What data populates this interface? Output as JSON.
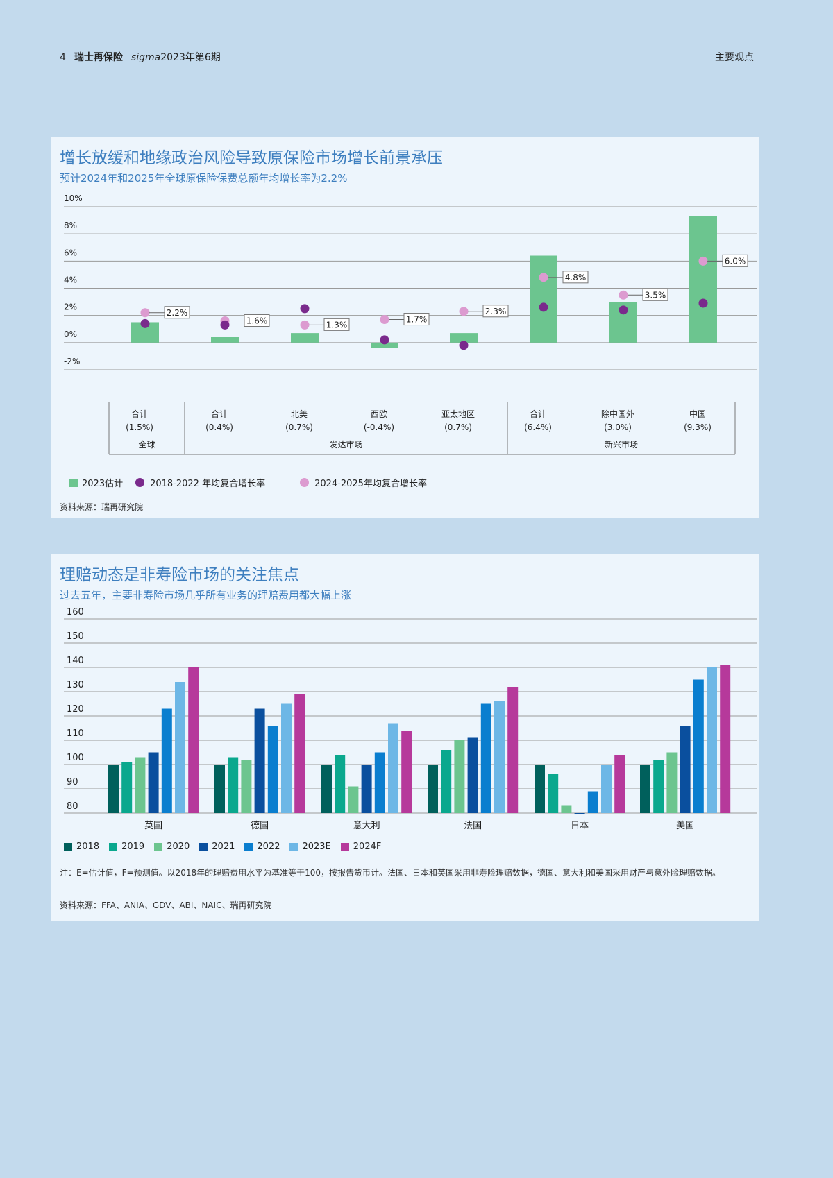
{
  "header": {
    "page_number": "4",
    "brand": "瑞士再保险",
    "publication_italic": "sigma",
    "issue": "2023年第6期",
    "section": "主要观点"
  },
  "chart1": {
    "title": "增长放缓和地缘政治风险导致原保险市场增长前景承压",
    "subtitle": "预计2024年和2025年全球原保险保费总额年均增长率为2.2%",
    "source": "资料来源：瑞再研究院",
    "legend": {
      "bar": "2023估计",
      "dot_dark": "2018-2022 年均复合增长率",
      "dot_light": "2024-2025年均复合增长率"
    },
    "colors": {
      "bar": "#6cc58f",
      "dot_dark": "#7a2a8c",
      "dot_light": "#dc9bd0",
      "grid": "#9a9a9a"
    },
    "group_labels": [
      "全球",
      "发达市场",
      "新兴市场"
    ]
  },
  "chart2": {
    "title": "理赔动态是非寿险市场的关注焦点",
    "subtitle": "过去五年，主要非寿险市场几乎所有业务的理赔费用都大幅上涨",
    "note": "注：E=估计值，F=预测值。以2018年的理赔费用水平为基准等于100，按报告货币计。法国、日本和英国采用非寿险理赔数据，德国、意大利和美国采用财产与意外险理赔数据。",
    "source": "资料来源：FFA、ANIA、GDV、ABI、NAIC、瑞再研究院"
  },
  "chart_data": [
    {
      "type": "bar",
      "title": "增长放缓和地缘政治风险导致原保险市场增长前景承压",
      "ylabel": "",
      "ylim": [
        -2,
        10
      ],
      "yticks": [
        -2,
        0,
        2,
        4,
        6,
        8,
        10
      ],
      "ytick_labels": [
        "-2%",
        "0%",
        "2%",
        "4%",
        "6%",
        "8%",
        "10%"
      ],
      "categories": [
        "合计",
        "合计",
        "北美",
        "西欧",
        "亚太地区",
        "合计",
        "除中国外",
        "中国"
      ],
      "category_values": [
        "(1.5%)",
        "(0.4%)",
        "(0.7%)",
        "(-0.4%)",
        "(0.7%)",
        "(6.4%)",
        "(3.0%)",
        "(9.3%)"
      ],
      "groups": [
        {
          "label": "全球",
          "categories": [
            0
          ]
        },
        {
          "label": "发达市场",
          "categories": [
            1,
            2,
            3,
            4
          ]
        },
        {
          "label": "新兴市场",
          "categories": [
            5,
            6,
            7
          ]
        }
      ],
      "series": [
        {
          "name": "2023估计",
          "kind": "bar",
          "values": [
            1.5,
            0.4,
            0.7,
            -0.4,
            0.7,
            6.4,
            3.0,
            9.3
          ]
        },
        {
          "name": "2018-2022 年均复合增长率",
          "kind": "dot",
          "values": [
            1.4,
            1.3,
            2.5,
            0.2,
            -0.2,
            2.6,
            2.4,
            2.9
          ]
        },
        {
          "name": "2024-2025年均复合增长率",
          "kind": "dot",
          "values": [
            2.2,
            1.6,
            1.3,
            1.7,
            2.3,
            4.8,
            3.5,
            6.0
          ],
          "data_labels": [
            "2.2%",
            "1.6%",
            "1.3%",
            "1.7%",
            "2.3%",
            "4.8%",
            "3.5%",
            "6.0%"
          ]
        }
      ]
    },
    {
      "type": "bar",
      "title": "理赔动态是非寿险市场的关注焦点",
      "ylim": [
        80,
        160
      ],
      "yticks": [
        80,
        90,
        100,
        110,
        120,
        130,
        140,
        150,
        160
      ],
      "categories": [
        "英国",
        "德国",
        "意大利",
        "法国",
        "日本",
        "美国"
      ],
      "series": [
        {
          "name": "2018",
          "color": "#00605c",
          "values": [
            100,
            100,
            100,
            100,
            100,
            100
          ]
        },
        {
          "name": "2019",
          "color": "#0aa88e",
          "values": [
            101,
            103,
            104,
            106,
            96,
            102
          ]
        },
        {
          "name": "2020",
          "color": "#6cc58f",
          "values": [
            103,
            102,
            91,
            110,
            83,
            105
          ]
        },
        {
          "name": "2021",
          "color": "#0a4f9e",
          "values": [
            105,
            123,
            100,
            111,
            80,
            116
          ]
        },
        {
          "name": "2022",
          "color": "#0a7ecf",
          "values": [
            123,
            116,
            105,
            125,
            89,
            135
          ]
        },
        {
          "name": "2023E",
          "color": "#6db7e6",
          "values": [
            134,
            125,
            117,
            126,
            100,
            140
          ]
        },
        {
          "name": "2024F",
          "color": "#b6399b",
          "values": [
            140,
            129,
            114,
            132,
            104,
            141
          ]
        }
      ]
    }
  ]
}
